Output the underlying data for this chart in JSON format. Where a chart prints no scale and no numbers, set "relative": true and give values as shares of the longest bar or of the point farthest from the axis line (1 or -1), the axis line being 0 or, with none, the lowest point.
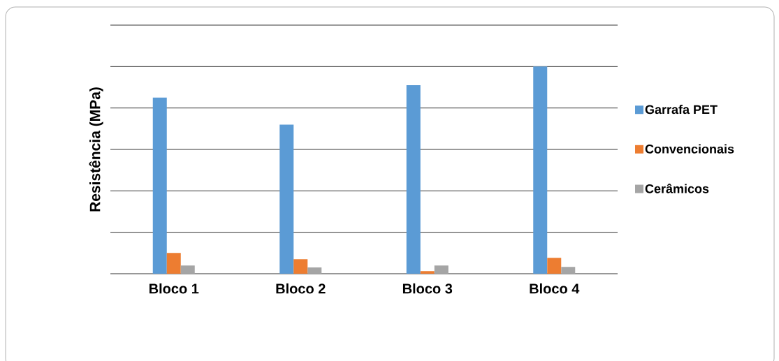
{
  "chart_data": {
    "type": "bar",
    "ylabel": "Resistência (MPa)",
    "relative": true,
    "categories": [
      "Bloco 1",
      "Bloco 2",
      "Bloco 3",
      "Bloco 4"
    ],
    "series": [
      {
        "name": "Garrafa PET",
        "color": "#5b9bd5",
        "values": [
          0.85,
          0.72,
          0.91,
          1
        ]
      },
      {
        "name": "Convencionais",
        "color": "#ed7d31",
        "values": [
          0.1,
          0.07,
          0.013,
          0.077
        ]
      },
      {
        "name": "Cerâmicos",
        "color": "#a5a5a5",
        "values": [
          0.04,
          0.03,
          0.04,
          0.033
        ]
      }
    ],
    "grid": "y",
    "legend": "right"
  }
}
